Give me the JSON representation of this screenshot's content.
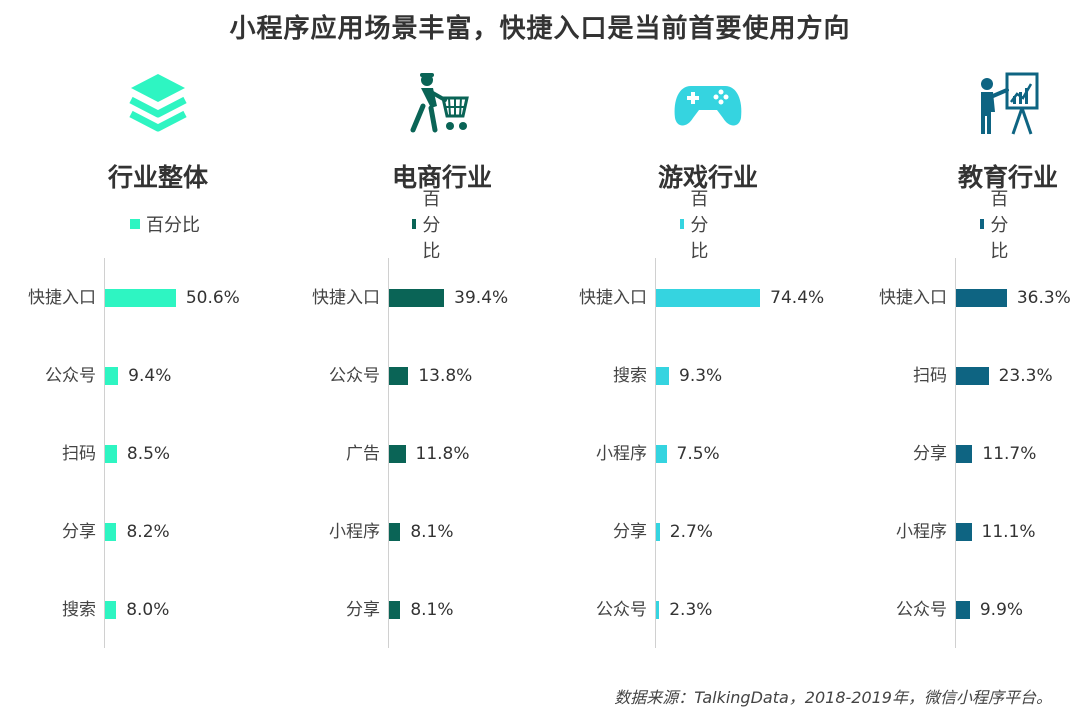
{
  "title": "小程序应用场景丰富，快捷入口是当前首要使用方向",
  "source": "数据来源：TalkingData，2018-2019年，微信小程序平台。",
  "chart_data": [
    {
      "type": "bar",
      "industry": "行业整体",
      "icon": "layers-icon",
      "color": "#2ef5c2",
      "legend": "百分比",
      "categories": [
        "快捷入口",
        "公众号",
        "扫码",
        "分享",
        "搜索"
      ],
      "values": [
        50.6,
        9.4,
        8.5,
        8.2,
        8.0
      ],
      "labels": [
        "50.6%",
        "9.4%",
        "8.5%",
        "8.2%",
        "8.0%"
      ]
    },
    {
      "type": "bar",
      "industry": "电商行业",
      "icon": "shopping-cart-person-icon",
      "color": "#0a6456",
      "legend": "百分比",
      "categories": [
        "快捷入口",
        "公众号",
        "广告",
        "小程序",
        "分享"
      ],
      "values": [
        39.4,
        13.8,
        11.8,
        8.1,
        8.1
      ],
      "labels": [
        "39.4%",
        "13.8%",
        "11.8%",
        "8.1%",
        "8.1%"
      ]
    },
    {
      "type": "bar",
      "industry": "游戏行业",
      "icon": "gamepad-icon",
      "color": "#35d4e0",
      "legend": "百分比",
      "categories": [
        "快捷入口",
        "搜索",
        "小程序",
        "分享",
        "公众号"
      ],
      "values": [
        74.4,
        9.3,
        7.5,
        2.7,
        2.3
      ],
      "labels": [
        "74.4%",
        "9.3%",
        "7.5%",
        "2.7%",
        "2.3%"
      ]
    },
    {
      "type": "bar",
      "industry": "教育行业",
      "icon": "teacher-board-icon",
      "color": "#0e6482",
      "legend": "百分比",
      "categories": [
        "快捷入口",
        "扫码",
        "分享",
        "小程序",
        "公众号"
      ],
      "values": [
        36.3,
        23.3,
        11.7,
        11.1,
        9.9
      ],
      "labels": [
        "36.3%",
        "23.3%",
        "11.7%",
        "11.1%",
        "9.9%"
      ]
    }
  ]
}
